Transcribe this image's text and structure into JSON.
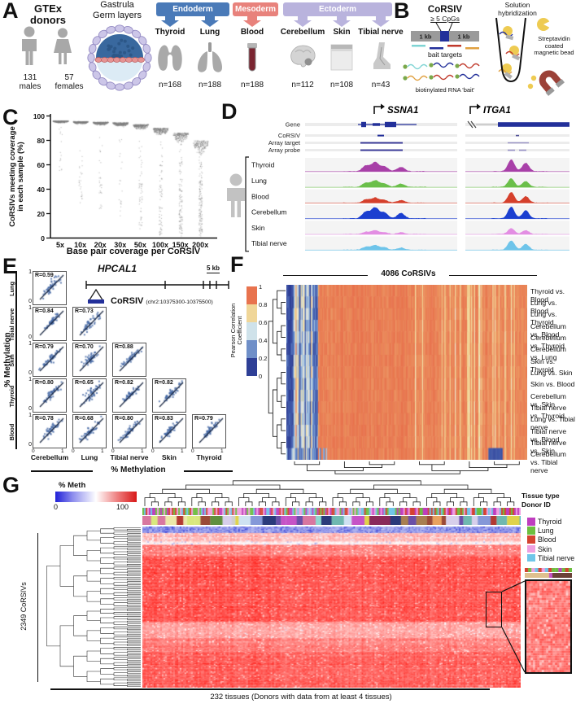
{
  "panels": {
    "a": "A",
    "b": "B",
    "c": "C",
    "d": "D",
    "e": "E",
    "f": "F",
    "g": "G"
  },
  "panel_a": {
    "donors": {
      "title_line1": "GTEx",
      "title_line2": "donors",
      "male_count": "131",
      "male_label": "males",
      "female_count": "57",
      "female_label": "females"
    },
    "gastrula_line1": "Gastrula",
    "gastrula_line2": "Germ layers",
    "germ_layers": [
      {
        "name": "Endoderm",
        "color": "#4a7ab8"
      },
      {
        "name": "Mesoderm",
        "color": "#e8827c"
      },
      {
        "name": "Ectoderm",
        "color": "#b9b3dd"
      }
    ],
    "tissues": [
      {
        "name": "Thyroid",
        "n": "n=168",
        "layer": 0,
        "icon": "thyroid-icon"
      },
      {
        "name": "Lung",
        "n": "n=188",
        "layer": 0,
        "icon": "lungs-icon"
      },
      {
        "name": "Blood",
        "n": "n=188",
        "layer": 1,
        "icon": "blood-tube-icon"
      },
      {
        "name": "Cerebellum",
        "n": "n=112",
        "layer": 2,
        "icon": "brain-icon"
      },
      {
        "name": "Skin",
        "n": "n=108",
        "layer": 2,
        "icon": "skin-icon"
      },
      {
        "name": "Tibial nerve",
        "n": "n=43",
        "layer": 2,
        "icon": "foot-icon"
      }
    ]
  },
  "panel_b": {
    "corsiv_title": "CoRSIV",
    "corsiv_sub": "≥ 5 CpGs",
    "kb_left": "1 kb",
    "kb_right": "1 kb",
    "bait_targets_label": "bait targets",
    "bait_label": "biotinylated RNA 'bait'",
    "hybridization_line1": "Solution",
    "hybridization_line2": "hybridization",
    "bead_label": "Streptavidin coated magnetic bead",
    "bait_colors": [
      "#7fd4d4",
      "#23309a",
      "#c0392b",
      "#e0a040"
    ]
  },
  "panel_d": {
    "annotation_rows": [
      "Gene",
      "CoRSIV",
      "Array target",
      "Array probe"
    ],
    "tissues": [
      {
        "name": "Thyroid",
        "color": "#a840a8"
      },
      {
        "name": "Lung",
        "color": "#6bbf4a"
      },
      {
        "name": "Blood",
        "color": "#d5402c"
      },
      {
        "name": "Cerebellum",
        "color": "#1b3fd0"
      },
      {
        "name": "Skin",
        "color": "#e38ee3"
      },
      {
        "name": "Tibial nerve",
        "color": "#6ec4ea"
      }
    ],
    "genes": [
      {
        "name": "SSNA1",
        "range": "[0–1140]",
        "scale": "1 kb"
      },
      {
        "name": "ITGA1",
        "range": "[0–2027]",
        "scale": "1 kb"
      }
    ]
  },
  "chart_data": [
    {
      "id": "coverage_beeswarm",
      "type": "scatter",
      "xlabel": "Base pair coverage per CoRSIV",
      "ylabel_line1": "CoRSIVs meeting coverage",
      "ylabel_line2": "in each sample (%)",
      "categories": [
        "5x",
        "10x",
        "20x",
        "30x",
        "50x",
        "100x",
        "150x",
        "200x"
      ],
      "yticks": [
        0,
        20,
        40,
        60,
        80,
        100
      ],
      "ylim": [
        0,
        100
      ],
      "distributions": [
        {
          "x": "5x",
          "peak": 96.5,
          "spread": 1.1,
          "tail_frac": 0.05,
          "tail_min": 55
        },
        {
          "x": "10x",
          "peak": 96,
          "spread": 1.4,
          "tail_frac": 0.07,
          "tail_min": 28
        },
        {
          "x": "20x",
          "peak": 95.5,
          "spread": 1.7,
          "tail_frac": 0.08,
          "tail_min": 22
        },
        {
          "x": "30x",
          "peak": 95,
          "spread": 2.1,
          "tail_frac": 0.1,
          "tail_min": 15
        },
        {
          "x": "50x",
          "peak": 93.5,
          "spread": 2.8,
          "tail_frac": 0.15,
          "tail_min": 4
        },
        {
          "x": "100x",
          "peak": 90.5,
          "spread": 4.2,
          "tail_frac": 0.26,
          "tail_min": 0
        },
        {
          "x": "150x",
          "peak": 86.5,
          "spread": 5.5,
          "tail_frac": 0.36,
          "tail_min": 0
        },
        {
          "x": "200x",
          "peak": 80,
          "spread": 7.5,
          "tail_frac": 0.46,
          "tail_min": 0
        }
      ]
    },
    {
      "id": "hpcal1_matrix",
      "type": "scatter",
      "gene": "HPCAL1",
      "scale_bar": "5 kb",
      "corsiv_label": "CoRSIV",
      "corsiv_region": "(chr2:10375300-10375500)",
      "xlabel": "% Methylation",
      "ylabel": "% Methylation",
      "r_prefix": "R=",
      "rows": [
        "Lung",
        "Tibial nerve",
        "Skin",
        "Thyroid",
        "Blood"
      ],
      "cols": [
        "Cerebellum",
        "Lung",
        "Tibial nerve",
        "Skin",
        "Thyroid"
      ],
      "axis_ticks": {
        "y_top": "1",
        "y_bottom": "0",
        "x_left": "0",
        "x_right": "1"
      },
      "r_values": [
        [
          0.59
        ],
        [
          0.84,
          0.73
        ],
        [
          0.79,
          0.7,
          0.88
        ],
        [
          0.8,
          0.65,
          0.82,
          0.82
        ],
        [
          0.78,
          0.68,
          0.8,
          0.83,
          0.79
        ]
      ]
    },
    {
      "id": "corsiv_correlation_heatmap",
      "type": "heatmap",
      "title": "4086 CoRSIVs",
      "colorbar_label_line1": "Pearson Correlation",
      "colorbar_label_line2": "Coefficient",
      "colorbar_ticks": [
        "1",
        "0.8",
        "0.6",
        "0.4",
        "0.2",
        "0"
      ],
      "colorbar_colors": [
        "#e8734e",
        "#f0d698",
        "#cfe2ea",
        "#6f8fc8",
        "#2e3f96"
      ],
      "row_labels": [
        "Thyroid vs. Blood",
        "Lung vs. Blood",
        "Lung vs. Thyroid",
        "Cerebellum vs. Blood",
        "Cerebellum vs. Thyroid",
        "Cerebellum vs. Lung",
        "Skin vs. Thyroid",
        "Lung vs. Skin",
        "Skin vs. Blood",
        "Cerebellum vs. Skin",
        "Tibial nerve vs. Thyroid",
        "Lung vs. Tibial nerve",
        "Tibial nerve vs. Blood",
        "Tibial nerve vs. Skin",
        "Cerebellum vs. Tibial nerve"
      ]
    },
    {
      "id": "methylation_heatmap",
      "type": "heatmap",
      "scale_label": "% Meth",
      "scale_min": "0",
      "scale_max": "100",
      "row_count_label": "2349 CoRSIVs",
      "col_bar_labels": [
        "Tissue type",
        "Donor ID"
      ],
      "legend": [
        {
          "name": "Thyroid",
          "color": "#bf3ebf"
        },
        {
          "name": "Lung",
          "color": "#6dbf40"
        },
        {
          "name": "Blood",
          "color": "#d54330"
        },
        {
          "name": "Skin",
          "color": "#efa0e0"
        },
        {
          "name": "Tibial nerve",
          "color": "#6fc6e9"
        }
      ],
      "caption": "232 tissues (Donors with data from at least 4 tissues)"
    }
  ]
}
